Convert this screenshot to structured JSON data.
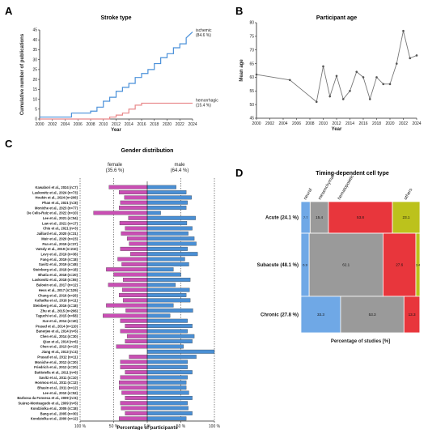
{
  "figure": {
    "panel_letters": [
      "A",
      "B",
      "C",
      "D"
    ]
  },
  "chart_data": [
    {
      "type": "line",
      "panel": "A",
      "title": "Stroke type",
      "xlabel": "Year",
      "ylabel": "Cumulative number of publications",
      "xlim": [
        2000,
        2024
      ],
      "ylim": [
        0,
        45
      ],
      "xticks": [
        2000,
        2002,
        2004,
        2006,
        2008,
        2010,
        2012,
        2014,
        2016,
        2018,
        2020,
        2022,
        2024
      ],
      "yticks": [
        0,
        5,
        10,
        15,
        20,
        25,
        30,
        35,
        40,
        45
      ],
      "series": [
        {
          "name": "ischemic",
          "annotation": "(84.6 %)",
          "color": "#4a90d9",
          "x": [
            2000,
            2005,
            2005,
            2008,
            2008,
            2009,
            2009,
            2010,
            2010,
            2011,
            2011,
            2012,
            2012,
            2013,
            2013,
            2014,
            2014,
            2015,
            2015,
            2016,
            2016,
            2017,
            2017,
            2018,
            2018,
            2019,
            2019,
            2020,
            2020,
            2021,
            2021,
            2022,
            2022,
            2023,
            2023,
            2024
          ],
          "y": [
            1,
            1,
            3,
            3,
            4,
            4,
            6,
            6,
            9,
            9,
            11,
            11,
            14,
            14,
            16,
            16,
            18,
            18,
            21,
            21,
            23,
            23,
            25,
            25,
            28,
            28,
            31,
            31,
            33,
            33,
            36,
            36,
            38,
            38,
            41,
            44
          ]
        },
        {
          "name": "hemorrhagic",
          "annotation": "(15.4 %)",
          "color": "#e8888a",
          "x": [
            2000,
            2011,
            2011,
            2012,
            2012,
            2013,
            2013,
            2014,
            2014,
            2015,
            2015,
            2016,
            2016,
            2024
          ],
          "y": [
            0,
            0,
            1,
            1,
            2,
            2,
            3,
            3,
            5,
            5,
            7,
            7,
            8,
            8
          ]
        }
      ]
    },
    {
      "type": "line",
      "panel": "B",
      "title": "Participant age",
      "xlabel": "Year",
      "ylabel": "Mean age",
      "xlim": [
        2000,
        2024
      ],
      "ylim": [
        45,
        80
      ],
      "xticks": [
        2000,
        2002,
        2004,
        2006,
        2008,
        2010,
        2012,
        2014,
        2016,
        2018,
        2020,
        2022,
        2024
      ],
      "yticks": [
        45,
        50,
        55,
        60,
        65,
        70,
        75,
        80
      ],
      "series": [
        {
          "color": "#777777",
          "x": [
            2000,
            2005,
            2009,
            2010,
            2011,
            2012,
            2013,
            2014,
            2015,
            2016,
            2017,
            2018,
            2019,
            2020,
            2021,
            2022,
            2023,
            2024
          ],
          "y": [
            61,
            59,
            51,
            64,
            53,
            60.5,
            52,
            55,
            62,
            60,
            52,
            60,
            57.5,
            57.5,
            65,
            77,
            67,
            68
          ]
        }
      ]
    },
    {
      "type": "bar",
      "panel": "C",
      "title": "Gender distribution",
      "xlabel": "Percentage of participants",
      "left_header": "female",
      "left_header_pct": "(35.6 %)",
      "right_header": "male",
      "right_header_pct": "(64.4 %)",
      "xticks": [
        "100 %",
        "50 %",
        "0 %",
        "50 %",
        "100 %"
      ],
      "female_color": "#c94fb4",
      "male_color": "#4a8fd4",
      "categories": [
        "Kawabori et al., 2024 (n=7)",
        "Laskowitz et al., 2024 (n=73)",
        "Houkin et al., 2024 (n=206)",
        "Phan et al., 2021 (n=8)",
        "Moniche et al., 2023 (n=77)",
        "De Celis-Ruiz et al., 2022 (n=10)",
        "Lee et al., 2021 (n=54)",
        "Law et al., 2021 (n=17)",
        "Chiu et al., 2021 (n=3)",
        "Jaillard et al., 2020 (n=31)",
        "Muir et al., 2020 (n=23)",
        "Pan et al., 2019 (n=37)",
        "Vatsdy et al., 2019 (n=210)",
        "Levy et al., 2019 (n=36)",
        "Fang et al., 2019 (n=18)",
        "Savitz et al., 2019 (n=48)",
        "Steinberg et al., 2018 (n=18)",
        "Bhatia et al., 2018 (n=20)",
        "Laskowitz et al., 2018 (n=55)",
        "Baloein et al., 2017 (n=12)",
        "Hess et al., 2017 (n=129)",
        "Chang et al., 2016 (n=26)",
        "Kalladka et al., 2016 (n=11)",
        "Steinberg et al., 2016 (n=18)",
        "Zhu et al., 2015 (n=206)",
        "Taguchi et al., 2015 (n=58)",
        "Xue et al., 2014 (n=40)",
        "Prasad et al., 2014 (n=110)",
        "Banerjee et al., 2014 (n=5)",
        "Chen et al., 2014 (n=30)",
        "Qiao et al., 2014 (n=6)",
        "Chen et al., 2013 (n=13)",
        "Jiang et al., 2013 (n=4)",
        "Prasad et al., 2012 (n=11)",
        "Moniche et al., 2012 (n=20)",
        "Friedrich et al., 2012 (n=20)",
        "Battistella et al., 2011 (n=6)",
        "Savitz et al., 2011 (n=10)",
        "Honmou et al., 2011 (n=12)",
        "Bhasin et al., 2011 (n=12)",
        "Lee et al., 2010 (n=52)",
        "Barbosa da Fonseca et al., 2009 (n=6)",
        "Suárez-Monteagudo et al., 2009 (n=5)",
        "Kondziolka et al., 2005 (n=18)",
        "Bang et al., 2005 (n=30)",
        "Kondziolka et al., 2000 (n=12)"
      ],
      "series": [
        {
          "name": "female",
          "values": [
            57,
            42,
            34,
            40,
            42,
            80,
            28,
            41,
            33,
            39,
            30,
            27,
            40,
            25,
            44,
            38,
            61,
            50,
            36,
            58,
            37,
            42,
            36,
            61,
            32,
            66,
            40,
            33,
            40,
            30,
            33,
            46,
            0,
            27,
            40,
            40,
            33,
            40,
            42,
            42,
            38,
            33,
            40,
            39,
            33,
            42
          ]
        },
        {
          "name": "male",
          "values": [
            43,
            58,
            66,
            60,
            58,
            20,
            72,
            59,
            67,
            61,
            70,
            73,
            60,
            75,
            56,
            62,
            39,
            50,
            64,
            42,
            63,
            58,
            64,
            39,
            68,
            34,
            60,
            67,
            60,
            70,
            67,
            54,
            100,
            73,
            60,
            60,
            67,
            60,
            58,
            58,
            62,
            67,
            60,
            61,
            67,
            58
          ]
        }
      ]
    },
    {
      "type": "bar",
      "stacked": true,
      "panel": "D",
      "title": "Timing-dependent cell type",
      "xlabel": "Percentage of studies [%]",
      "column_labels": [
        "neural",
        "mesenchymal",
        "hematopoietic",
        "others"
      ],
      "column_colors": [
        "#6fa8e6",
        "#9a9a9a",
        "#e8363c",
        "#bcc21c"
      ],
      "rows": [
        {
          "label": "Acute (24.1 %)",
          "weight": 24.1,
          "values": [
            7.7,
            15.4,
            53.8,
            23.1
          ],
          "display": [
            "7.7",
            "15.4",
            "53.8",
            "23.1"
          ]
        },
        {
          "label": "Subacute (48.1 %)",
          "weight": 48.1,
          "values": [
            6.9,
            62.1,
            27.6,
            3.4
          ],
          "display": [
            "6.9",
            "62.1",
            "27.6",
            "3.4"
          ]
        },
        {
          "label": "Chronic (27.8 %)",
          "weight": 27.8,
          "values": [
            33.3,
            53.3,
            13.3,
            0
          ],
          "display": [
            "33.3",
            "53.3",
            "13.3",
            ""
          ]
        }
      ]
    }
  ]
}
